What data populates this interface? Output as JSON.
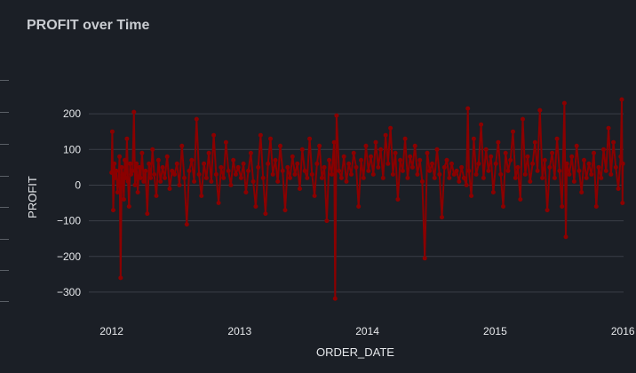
{
  "title": "PROFIT over Time",
  "colors": {
    "series": "#8b0000",
    "grid": "#3a3f47",
    "background": "#1b1f26"
  },
  "chart_data": {
    "type": "line",
    "title": "PROFIT over Time",
    "xlabel": "ORDER_DATE",
    "ylabel": "PROFIT",
    "xlim": [
      "2011-12-28",
      "2016-01-03"
    ],
    "ylim": [
      -340,
      270
    ],
    "y_ticks": [
      200,
      100,
      0,
      -100,
      -200,
      -300
    ],
    "y_tick_labels": [
      "200",
      "100",
      "0",
      "−100",
      "−200",
      "−300"
    ],
    "x_ticks": [
      "2012-01-01",
      "2013-01-01",
      "2014-01-01",
      "2015-01-01",
      "2016-01-01"
    ],
    "x_tick_labels": [
      "2012",
      "2013",
      "2014",
      "2015",
      "2016"
    ],
    "grid": true,
    "series": [
      {
        "color": "#8b0000",
        "points": [
          [
            "2012-01-01",
            35
          ],
          [
            "2012-01-03",
            150
          ],
          [
            "2012-01-06",
            -70
          ],
          [
            "2012-01-09",
            60
          ],
          [
            "2012-01-12",
            20
          ],
          [
            "2012-01-15",
            40
          ],
          [
            "2012-01-18",
            -20
          ],
          [
            "2012-01-21",
            10
          ],
          [
            "2012-01-24",
            80
          ],
          [
            "2012-01-27",
            -260
          ],
          [
            "2012-01-30",
            50
          ],
          [
            "2012-02-02",
            30
          ],
          [
            "2012-02-05",
            -40
          ],
          [
            "2012-02-08",
            70
          ],
          [
            "2012-02-11",
            20
          ],
          [
            "2012-02-14",
            130
          ],
          [
            "2012-02-17",
            10
          ],
          [
            "2012-02-20",
            -60
          ],
          [
            "2012-02-23",
            60
          ],
          [
            "2012-02-26",
            30
          ],
          [
            "2012-03-01",
            40
          ],
          [
            "2012-03-05",
            205
          ],
          [
            "2012-03-08",
            0
          ],
          [
            "2012-03-12",
            60
          ],
          [
            "2012-03-16",
            -20
          ],
          [
            "2012-03-20",
            50
          ],
          [
            "2012-03-24",
            20
          ],
          [
            "2012-03-28",
            90
          ],
          [
            "2012-04-02",
            10
          ],
          [
            "2012-04-07",
            40
          ],
          [
            "2012-04-12",
            -80
          ],
          [
            "2012-04-17",
            60
          ],
          [
            "2012-04-22",
            20
          ],
          [
            "2012-04-27",
            100
          ],
          [
            "2012-05-02",
            30
          ],
          [
            "2012-05-08",
            -30
          ],
          [
            "2012-05-14",
            70
          ],
          [
            "2012-05-20",
            10
          ],
          [
            "2012-05-26",
            50
          ],
          [
            "2012-06-01",
            20
          ],
          [
            "2012-06-08",
            80
          ],
          [
            "2012-06-15",
            -10
          ],
          [
            "2012-06-22",
            40
          ],
          [
            "2012-06-29",
            30
          ],
          [
            "2012-07-06",
            60
          ],
          [
            "2012-07-13",
            0
          ],
          [
            "2012-07-20",
            110
          ],
          [
            "2012-07-27",
            20
          ],
          [
            "2012-08-03",
            -110
          ],
          [
            "2012-08-10",
            40
          ],
          [
            "2012-08-17",
            70
          ],
          [
            "2012-08-24",
            10
          ],
          [
            "2012-08-31",
            185
          ],
          [
            "2012-09-07",
            30
          ],
          [
            "2012-09-14",
            -30
          ],
          [
            "2012-09-21",
            60
          ],
          [
            "2012-09-28",
            20
          ],
          [
            "2012-10-05",
            90
          ],
          [
            "2012-10-12",
            10
          ],
          [
            "2012-10-19",
            140
          ],
          [
            "2012-10-26",
            30
          ],
          [
            "2012-11-02",
            -50
          ],
          [
            "2012-11-09",
            50
          ],
          [
            "2012-11-16",
            20
          ],
          [
            "2012-11-23",
            120
          ],
          [
            "2012-11-30",
            40
          ],
          [
            "2012-12-07",
            0
          ],
          [
            "2012-12-14",
            70
          ],
          [
            "2012-12-21",
            30
          ],
          [
            "2012-12-28",
            50
          ],
          [
            "2013-01-05",
            20
          ],
          [
            "2013-01-12",
            60
          ],
          [
            "2013-01-19",
            -20
          ],
          [
            "2013-01-26",
            40
          ],
          [
            "2013-02-02",
            90
          ],
          [
            "2013-02-09",
            10
          ],
          [
            "2013-02-16",
            -60
          ],
          [
            "2013-02-23",
            50
          ],
          [
            "2013-03-02",
            140
          ],
          [
            "2013-03-09",
            20
          ],
          [
            "2013-03-16",
            -80
          ],
          [
            "2013-03-23",
            60
          ],
          [
            "2013-03-30",
            130
          ],
          [
            "2013-04-06",
            30
          ],
          [
            "2013-04-13",
            70
          ],
          [
            "2013-04-20",
            10
          ],
          [
            "2013-04-27",
            110
          ],
          [
            "2013-05-04",
            40
          ],
          [
            "2013-05-11",
            -70
          ],
          [
            "2013-05-18",
            50
          ],
          [
            "2013-05-25",
            20
          ],
          [
            "2013-06-01",
            80
          ],
          [
            "2013-06-08",
            30
          ],
          [
            "2013-06-15",
            60
          ],
          [
            "2013-06-22",
            -10
          ],
          [
            "2013-06-29",
            100
          ],
          [
            "2013-07-06",
            40
          ],
          [
            "2013-07-13",
            20
          ],
          [
            "2013-07-20",
            130
          ],
          [
            "2013-07-27",
            30
          ],
          [
            "2013-08-03",
            -30
          ],
          [
            "2013-08-10",
            60
          ],
          [
            "2013-08-17",
            110
          ],
          [
            "2013-08-24",
            20
          ],
          [
            "2013-08-31",
            50
          ],
          [
            "2013-09-07",
            -100
          ],
          [
            "2013-09-14",
            70
          ],
          [
            "2013-09-21",
            30
          ],
          [
            "2013-09-28",
            120
          ],
          [
            "2013-10-01",
            -318
          ],
          [
            "2013-10-05",
            195
          ],
          [
            "2013-10-12",
            40
          ],
          [
            "2013-10-19",
            20
          ],
          [
            "2013-10-26",
            80
          ],
          [
            "2013-11-02",
            10
          ],
          [
            "2013-11-09",
            60
          ],
          [
            "2013-11-16",
            30
          ],
          [
            "2013-11-23",
            90
          ],
          [
            "2013-11-30",
            50
          ],
          [
            "2013-12-07",
            -60
          ],
          [
            "2013-12-14",
            70
          ],
          [
            "2013-12-21",
            20
          ],
          [
            "2013-12-28",
            110
          ],
          [
            "2014-01-04",
            40
          ],
          [
            "2014-01-11",
            80
          ],
          [
            "2014-01-18",
            30
          ],
          [
            "2014-01-25",
            120
          ],
          [
            "2014-02-01",
            50
          ],
          [
            "2014-02-08",
            100
          ],
          [
            "2014-02-15",
            20
          ],
          [
            "2014-02-22",
            140
          ],
          [
            "2014-03-01",
            60
          ],
          [
            "2014-03-08",
            160
          ],
          [
            "2014-03-15",
            30
          ],
          [
            "2014-03-22",
            90
          ],
          [
            "2014-03-29",
            -40
          ],
          [
            "2014-04-05",
            70
          ],
          [
            "2014-04-12",
            40
          ],
          [
            "2014-04-19",
            130
          ],
          [
            "2014-04-26",
            20
          ],
          [
            "2014-05-03",
            80
          ],
          [
            "2014-05-10",
            50
          ],
          [
            "2014-05-17",
            110
          ],
          [
            "2014-05-24",
            30
          ],
          [
            "2014-05-31",
            70
          ],
          [
            "2014-06-07",
            10
          ],
          [
            "2014-06-14",
            -205
          ],
          [
            "2014-06-21",
            90
          ],
          [
            "2014-06-28",
            40
          ],
          [
            "2014-07-05",
            60
          ],
          [
            "2014-07-12",
            20
          ],
          [
            "2014-07-19",
            100
          ],
          [
            "2014-07-26",
            30
          ],
          [
            "2014-08-02",
            -90
          ],
          [
            "2014-08-09",
            50
          ],
          [
            "2014-08-16",
            70
          ],
          [
            "2014-08-23",
            20
          ],
          [
            "2014-08-30",
            60
          ],
          [
            "2014-09-06",
            30
          ],
          [
            "2014-09-13",
            40
          ],
          [
            "2014-09-20",
            10
          ],
          [
            "2014-09-27",
            50
          ],
          [
            "2014-10-04",
            20
          ],
          [
            "2014-10-11",
            0
          ],
          [
            "2014-10-15",
            215
          ],
          [
            "2014-10-18",
            40
          ],
          [
            "2014-10-25",
            -30
          ],
          [
            "2014-11-01",
            130
          ],
          [
            "2014-11-08",
            30
          ],
          [
            "2014-11-15",
            60
          ],
          [
            "2014-11-22",
            170
          ],
          [
            "2014-11-29",
            20
          ],
          [
            "2014-12-06",
            100
          ],
          [
            "2014-12-13",
            40
          ],
          [
            "2014-12-20",
            80
          ],
          [
            "2014-12-27",
            -20
          ],
          [
            "2015-01-03",
            60
          ],
          [
            "2015-01-10",
            120
          ],
          [
            "2015-01-17",
            30
          ],
          [
            "2015-01-24",
            -60
          ],
          [
            "2015-01-31",
            90
          ],
          [
            "2015-02-07",
            40
          ],
          [
            "2015-02-14",
            70
          ],
          [
            "2015-02-21",
            150
          ],
          [
            "2015-02-28",
            20
          ],
          [
            "2015-03-07",
            50
          ],
          [
            "2015-03-14",
            -40
          ],
          [
            "2015-03-21",
            185
          ],
          [
            "2015-03-28",
            30
          ],
          [
            "2015-04-04",
            80
          ],
          [
            "2015-04-11",
            10
          ],
          [
            "2015-04-18",
            60
          ],
          [
            "2015-04-25",
            120
          ],
          [
            "2015-05-02",
            40
          ],
          [
            "2015-05-09",
            210
          ],
          [
            "2015-05-16",
            20
          ],
          [
            "2015-05-23",
            70
          ],
          [
            "2015-05-30",
            -70
          ],
          [
            "2015-06-06",
            50
          ],
          [
            "2015-06-13",
            90
          ],
          [
            "2015-06-20",
            20
          ],
          [
            "2015-06-27",
            130
          ],
          [
            "2015-07-04",
            40
          ],
          [
            "2015-07-11",
            -60
          ],
          [
            "2015-07-18",
            230
          ],
          [
            "2015-07-22",
            -145
          ],
          [
            "2015-07-25",
            60
          ],
          [
            "2015-08-01",
            30
          ],
          [
            "2015-08-08",
            80
          ],
          [
            "2015-08-15",
            10
          ],
          [
            "2015-08-22",
            110
          ],
          [
            "2015-08-29",
            40
          ],
          [
            "2015-09-05",
            -20
          ],
          [
            "2015-09-12",
            70
          ],
          [
            "2015-09-19",
            20
          ],
          [
            "2015-09-26",
            60
          ],
          [
            "2015-10-03",
            30
          ],
          [
            "2015-10-10",
            90
          ],
          [
            "2015-10-17",
            -60
          ],
          [
            "2015-10-24",
            50
          ],
          [
            "2015-10-31",
            20
          ],
          [
            "2015-11-07",
            100
          ],
          [
            "2015-11-14",
            40
          ],
          [
            "2015-11-21",
            160
          ],
          [
            "2015-11-28",
            30
          ],
          [
            "2015-12-05",
            120
          ],
          [
            "2015-12-12",
            50
          ],
          [
            "2015-12-19",
            -10
          ],
          [
            "2015-12-26",
            80
          ],
          [
            "2015-12-29",
            240
          ],
          [
            "2015-12-31",
            -50
          ],
          [
            "2016-01-01",
            60
          ]
        ]
      }
    ]
  }
}
